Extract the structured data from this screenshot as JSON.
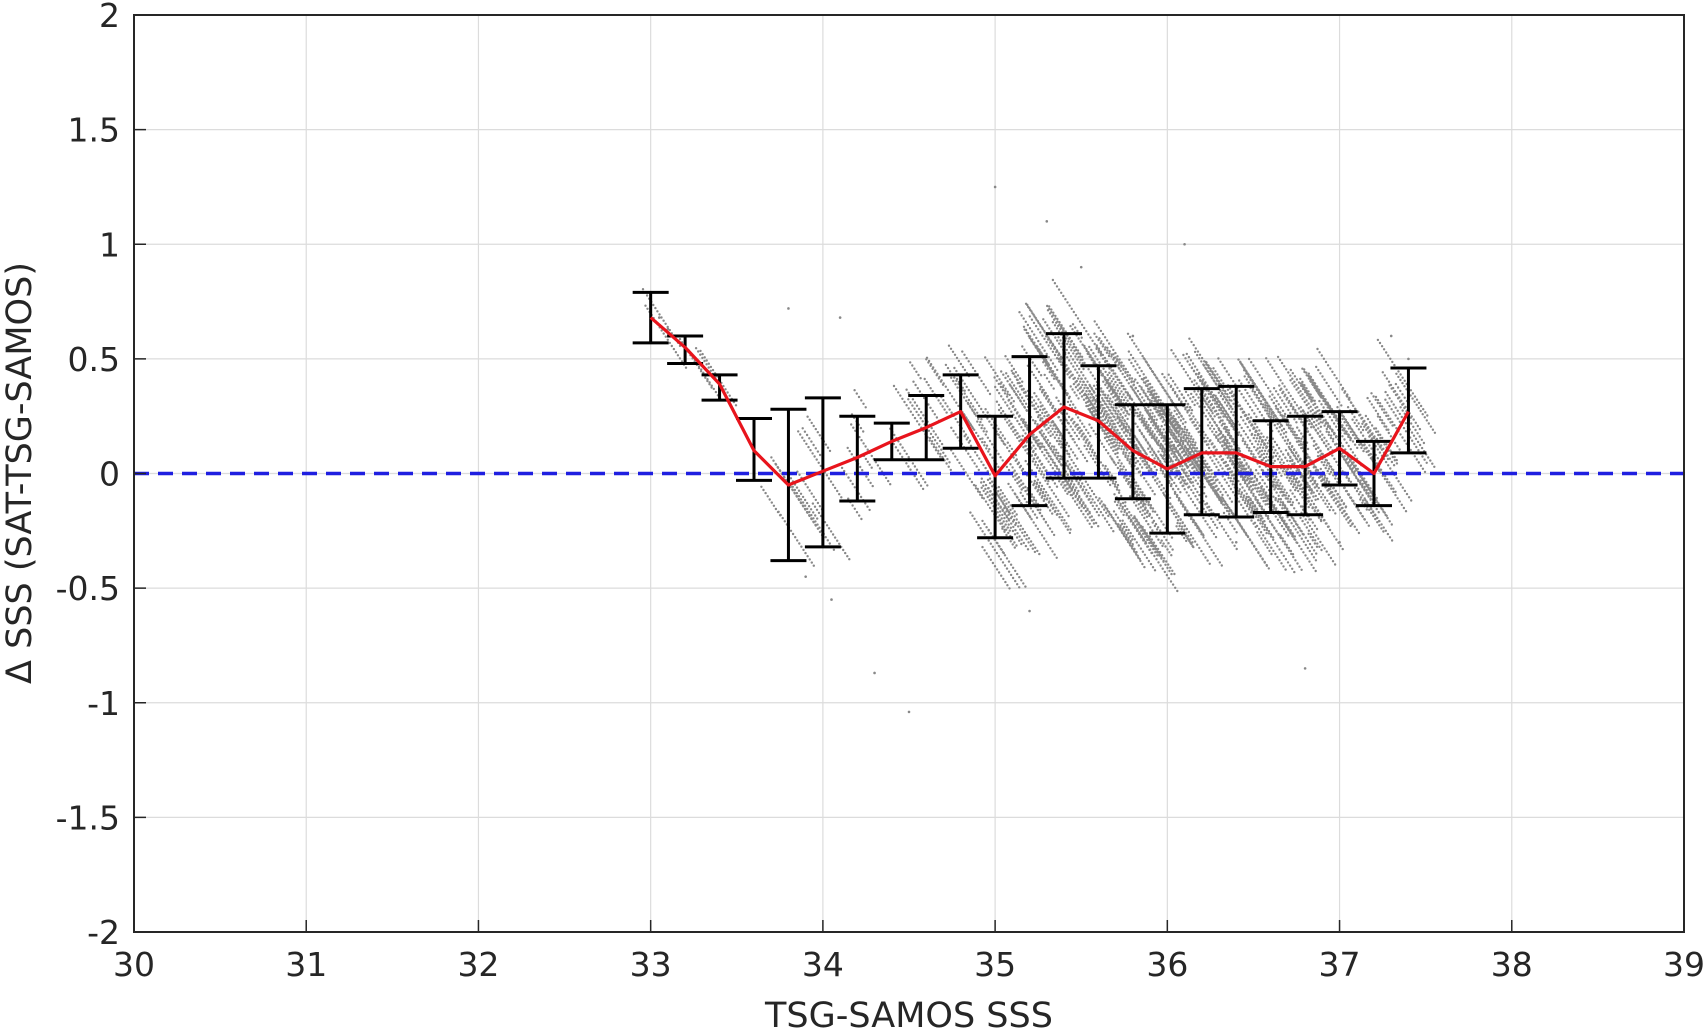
{
  "chart_data": {
    "type": "scatter",
    "xlabel": "TSG-SAMOS SSS",
    "ylabel": "Δ SSS (SAT-TSG-SAMOS)",
    "xlim": [
      30,
      39
    ],
    "ylim": [
      -2,
      2
    ],
    "xticks": [
      "30",
      "31",
      "32",
      "33",
      "34",
      "35",
      "36",
      "37",
      "38",
      "39"
    ],
    "yticks": [
      "2",
      "1.5",
      "1",
      "0.5",
      "0",
      "-0.5",
      "-1",
      "-1.5",
      "-2"
    ],
    "grid": true,
    "reference_line": {
      "y": 0,
      "style": "dashed",
      "color": "#1f1fe0"
    },
    "binned_mean": {
      "color": "#e8141c",
      "x": [
        33.0,
        33.2,
        33.4,
        33.6,
        33.8,
        34.0,
        34.2,
        34.4,
        34.6,
        34.8,
        35.0,
        35.2,
        35.4,
        35.6,
        35.8,
        36.0,
        36.2,
        36.4,
        36.6,
        36.8,
        37.0,
        37.2,
        37.4
      ],
      "y": [
        0.68,
        0.55,
        0.39,
        0.1,
        -0.05,
        0.01,
        0.07,
        0.14,
        0.2,
        0.27,
        -0.01,
        0.17,
        0.29,
        0.23,
        0.1,
        0.02,
        0.09,
        0.09,
        0.03,
        0.03,
        0.11,
        0.0,
        0.27
      ]
    },
    "error_bars": {
      "color": "#000000",
      "x": [
        33.0,
        33.2,
        33.4,
        33.6,
        33.8,
        34.0,
        34.2,
        34.4,
        34.6,
        34.8,
        35.0,
        35.2,
        35.4,
        35.6,
        35.8,
        36.0,
        36.2,
        36.4,
        36.6,
        36.8,
        37.0,
        37.2,
        37.4
      ],
      "lower": [
        0.57,
        0.48,
        0.32,
        -0.03,
        -0.38,
        -0.32,
        -0.12,
        0.06,
        0.06,
        0.11,
        -0.28,
        -0.14,
        -0.02,
        -0.02,
        -0.11,
        -0.26,
        -0.18,
        -0.19,
        -0.17,
        -0.18,
        -0.05,
        -0.14,
        0.09
      ],
      "upper": [
        0.79,
        0.6,
        0.43,
        0.24,
        0.28,
        0.33,
        0.25,
        0.22,
        0.34,
        0.43,
        0.25,
        0.51,
        0.61,
        0.47,
        0.3,
        0.3,
        0.37,
        0.38,
        0.23,
        0.25,
        0.27,
        0.14,
        0.46
      ]
    },
    "scatter": {
      "color": "#888888",
      "description_points": [
        [
          33.05,
          0.68
        ],
        [
          33.1,
          0.63
        ],
        [
          33.2,
          0.56
        ],
        [
          33.3,
          0.47
        ],
        [
          33.4,
          0.4
        ],
        [
          33.8,
          0.72
        ],
        [
          34.1,
          0.68
        ],
        [
          33.9,
          -0.45
        ],
        [
          34.05,
          -0.55
        ],
        [
          34.3,
          -0.87
        ],
        [
          34.5,
          -1.04
        ],
        [
          35.0,
          1.25
        ],
        [
          35.3,
          1.1
        ],
        [
          35.5,
          0.9
        ],
        [
          35.8,
          0.6
        ],
        [
          36.0,
          0.3
        ],
        [
          36.2,
          -0.1
        ],
        [
          36.4,
          -0.3
        ],
        [
          36.8,
          -0.85
        ],
        [
          37.0,
          -0.3
        ],
        [
          37.3,
          0.6
        ],
        [
          37.4,
          0.5
        ],
        [
          36.1,
          1.0
        ],
        [
          35.2,
          -0.6
        ]
      ]
    }
  }
}
